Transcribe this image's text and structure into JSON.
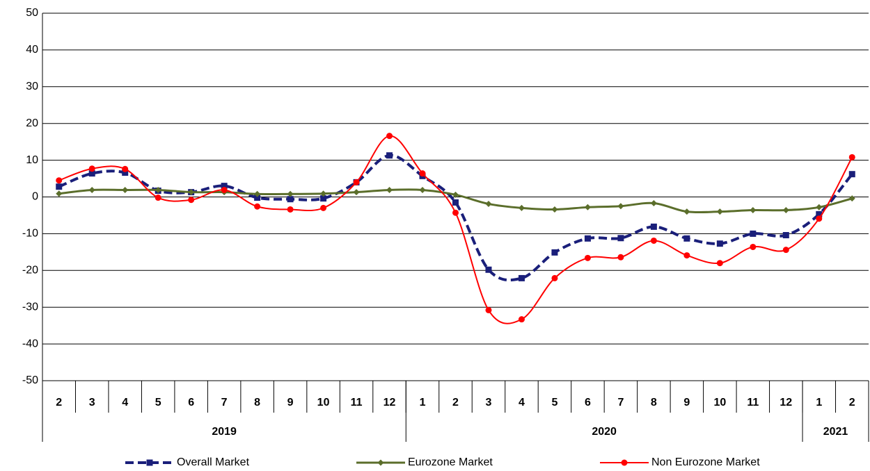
{
  "chart_data": {
    "type": "line",
    "smooth": true,
    "categories": [
      "2",
      "3",
      "4",
      "5",
      "6",
      "7",
      "8",
      "9",
      "10",
      "11",
      "12",
      "1",
      "2",
      "3",
      "4",
      "5",
      "6",
      "7",
      "8",
      "9",
      "10",
      "11",
      "12",
      "1",
      "2"
    ],
    "x_groups": [
      {
        "label": "2019",
        "span": 11
      },
      {
        "label": "2020",
        "span": 12
      },
      {
        "label": "2021",
        "span": 2
      }
    ],
    "ylim": [
      -50,
      50
    ],
    "yticks": [
      -50,
      -40,
      -30,
      -20,
      -10,
      0,
      10,
      20,
      30,
      40,
      50
    ],
    "grid": true,
    "legend": "bottom",
    "series": [
      {
        "name": "Overall Market",
        "color": "#1a1f7a",
        "line_style": "dashed",
        "marker": "square",
        "values": [
          2.8,
          6.4,
          6.6,
          1.7,
          1.3,
          3.0,
          -0.2,
          -0.6,
          -0.4,
          4.0,
          11.3,
          5.7,
          -1.5,
          -19.8,
          -22.1,
          -15.1,
          -11.3,
          -11.2,
          -8.1,
          -11.3,
          -12.7,
          -10.0,
          -10.4,
          -4.7,
          6.2
        ]
      },
      {
        "name": "Eurozone Market",
        "color": "#5b6e2b",
        "line_style": "solid",
        "marker": "diamond",
        "values": [
          0.9,
          1.9,
          1.9,
          1.9,
          1.3,
          1.3,
          0.8,
          0.8,
          0.9,
          1.3,
          1.9,
          1.9,
          0.6,
          -1.9,
          -3.0,
          -3.4,
          -2.8,
          -2.5,
          -1.7,
          -4.0,
          -4.0,
          -3.6,
          -3.6,
          -2.8,
          -0.4
        ]
      },
      {
        "name": "Non Eurozone Market",
        "color": "#ff0000",
        "line_style": "solid",
        "marker": "circle",
        "values": [
          4.5,
          7.7,
          7.6,
          -0.2,
          -0.8,
          1.9,
          -2.6,
          -3.4,
          -3.0,
          4.0,
          16.6,
          6.4,
          -4.3,
          -30.8,
          -33.3,
          -22.1,
          -16.6,
          -16.4,
          -11.9,
          -15.9,
          -18.0,
          -13.6,
          -14.4,
          -5.9,
          10.8
        ]
      }
    ]
  }
}
